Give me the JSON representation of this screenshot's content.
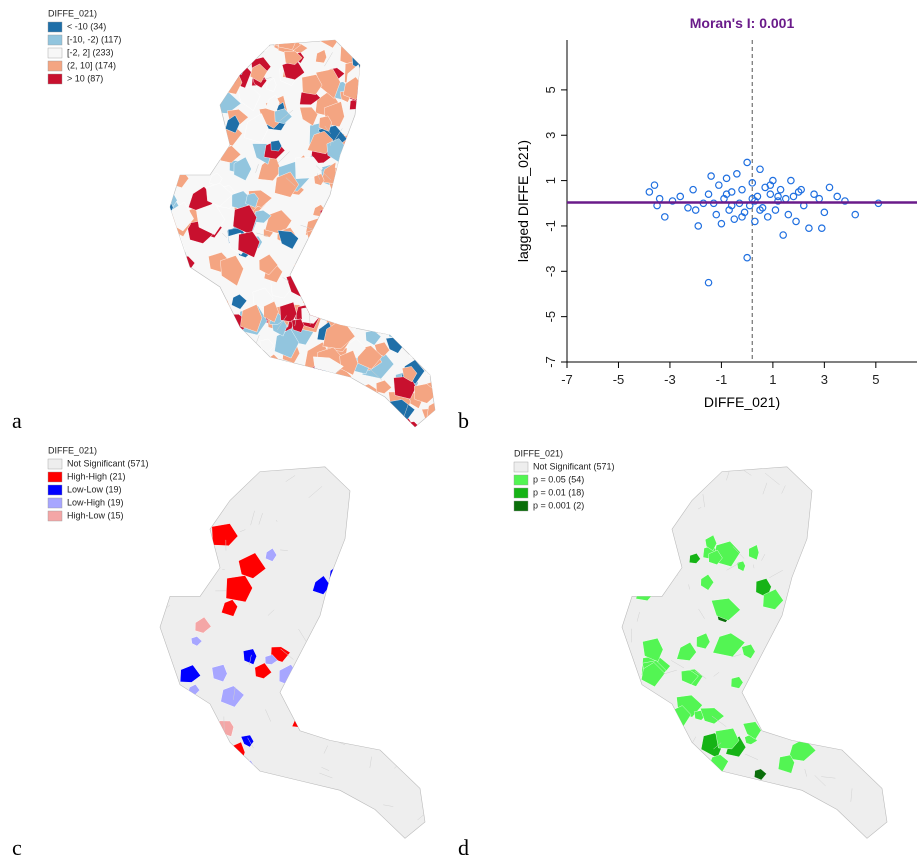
{
  "panel_labels": [
    "a",
    "b",
    "c",
    "d"
  ],
  "map_a": {
    "legend_title": "DIFFE_021)",
    "legend": [
      {
        "label": "< -10 (34)",
        "color": "#1f6fa8"
      },
      {
        "label": "[-10, -2) (117)",
        "color": "#92c5de"
      },
      {
        "label": "[-2, 2] (233)",
        "color": "#f7f7f7"
      },
      {
        "label": "(2, 10] (174)",
        "color": "#f4a582"
      },
      {
        "label": "> 10 (87)",
        "color": "#c8102e"
      }
    ]
  },
  "map_c": {
    "legend_title": "DIFFE_021)",
    "legend": [
      {
        "label": "Not Significant (571)",
        "color": "#eeeeee"
      },
      {
        "label": "High-High (21)",
        "color": "#ff0000"
      },
      {
        "label": "Low-Low (19)",
        "color": "#0000ff"
      },
      {
        "label": "Low-High (19)",
        "color": "#a7a6ff"
      },
      {
        "label": "High-Low (15)",
        "color": "#f4a6a6"
      }
    ]
  },
  "map_d": {
    "legend_title": "DIFFE_021)",
    "legend": [
      {
        "label": "Not Significant (571)",
        "color": "#eeeeee"
      },
      {
        "label": "p = 0.05 (54)",
        "color": "#53f553"
      },
      {
        "label": "p = 0.01 (18)",
        "color": "#16b316"
      },
      {
        "label": "p = 0.001 (2)",
        "color": "#0a6e0a"
      }
    ]
  },
  "chart_data": {
    "type": "scatter",
    "title": "Moran's I: 0.001",
    "xlabel": "DIFFE_021)",
    "ylabel": "lagged DIFFE_021)",
    "xlim": [
      -7,
      6.6
    ],
    "ylim": [
      -7,
      7.2
    ],
    "xticks": [
      -7,
      -5,
      -3,
      -1,
      1,
      3,
      5
    ],
    "yticks": [
      -7,
      -5,
      -3,
      -1,
      1,
      3,
      5
    ],
    "color": "#1f6fe0",
    "line_color": "#6a1b8a",
    "x": [
      -3.8,
      -3.6,
      -3.4,
      -3.2,
      -2.9,
      -2.6,
      -2.3,
      -2.1,
      -1.9,
      -1.7,
      -1.5,
      -1.4,
      -1.2,
      -1.1,
      -1.0,
      -0.9,
      -0.8,
      -0.7,
      -0.6,
      -0.5,
      -0.4,
      -0.3,
      -0.2,
      -0.1,
      0.0,
      0.1,
      0.2,
      0.3,
      0.4,
      0.5,
      0.6,
      0.7,
      0.8,
      0.9,
      1.0,
      1.1,
      1.2,
      1.3,
      1.4,
      1.5,
      1.6,
      1.7,
      1.8,
      1.9,
      2.0,
      2.2,
      2.4,
      2.6,
      2.8,
      3.0,
      3.2,
      3.5,
      3.8,
      4.2,
      5.1,
      -1.5,
      0.0,
      -1.3,
      -0.6,
      0.2,
      0.5,
      -0.2,
      0.9,
      1.2,
      -2.0,
      -0.8,
      0.3,
      2.1,
      2.9,
      -3.5
    ],
    "y": [
      0.5,
      0.8,
      0.2,
      -0.6,
      0.1,
      0.3,
      -0.2,
      0.6,
      -1.0,
      0.0,
      0.4,
      1.2,
      -0.5,
      0.8,
      -0.9,
      0.2,
      1.1,
      -0.3,
      0.5,
      -0.7,
      1.3,
      0.0,
      0.6,
      -0.4,
      1.8,
      -0.1,
      0.9,
      -0.8,
      0.3,
      1.5,
      -0.2,
      0.7,
      -0.6,
      0.4,
      1.0,
      -0.3,
      0.1,
      0.6,
      -1.4,
      0.2,
      -0.5,
      1.0,
      0.3,
      -0.8,
      0.5,
      -0.1,
      -1.1,
      0.4,
      0.2,
      -0.4,
      0.7,
      0.3,
      0.1,
      -0.5,
      0.0,
      -3.5,
      -2.4,
      0.0,
      -0.1,
      0.2,
      -0.3,
      -0.6,
      0.8,
      0.3,
      -0.3,
      0.4,
      0.1,
      0.6,
      -1.1,
      -0.1
    ]
  }
}
